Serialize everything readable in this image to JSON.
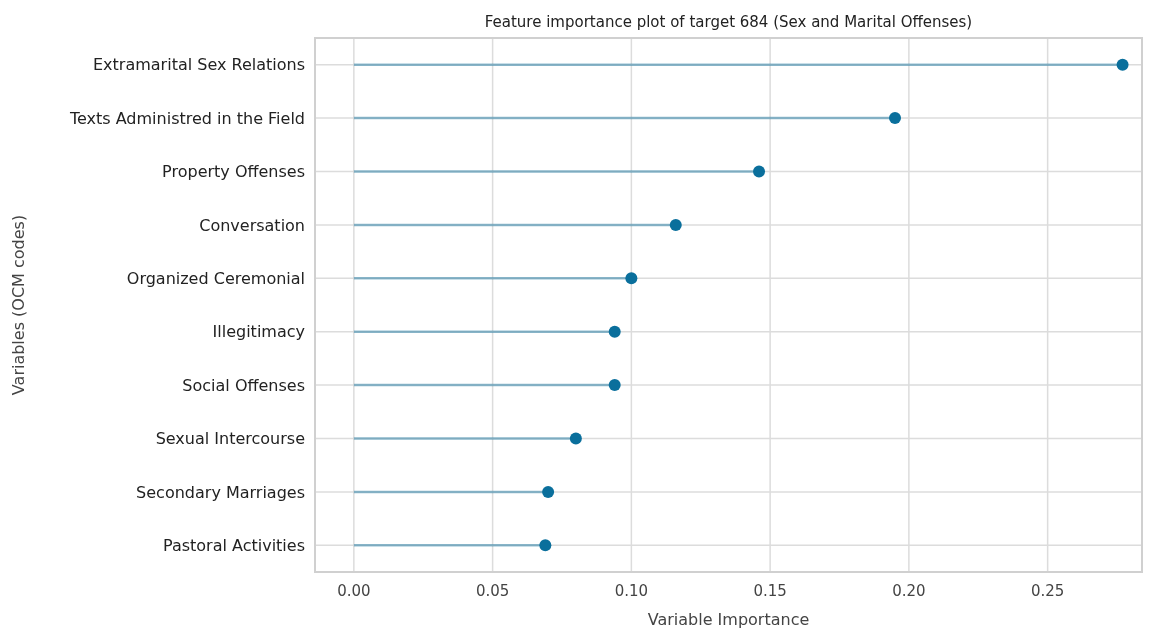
{
  "chart_data": {
    "type": "lollipop",
    "orientation": "horizontal",
    "title": "Feature importance plot of target 684 (Sex and Marital Offenses)",
    "xlabel": "Variable Importance",
    "ylabel": "Variables (OCM codes)",
    "categories": [
      "Extramarital Sex Relations",
      "Texts Administred in the Field",
      "Property Offenses",
      "Conversation",
      "Organized Ceremonial",
      "Illegitimacy",
      "Social Offenses",
      "Sexual Intercourse",
      "Secondary Marriages",
      "Pastoral Activities"
    ],
    "series": [
      {
        "color": "#0a6f9c",
        "values": [
          0.277,
          0.195,
          0.146,
          0.116,
          0.1,
          0.094,
          0.094,
          0.08,
          0.07,
          0.069
        ]
      }
    ],
    "xlim": [
      -0.014,
      0.284
    ],
    "xticks": [
      {
        "value": 0,
        "label": "0.00"
      },
      {
        "value": 0.05,
        "label": "0.05"
      },
      {
        "value": 0.1,
        "label": "0.10"
      },
      {
        "value": 0.15,
        "label": "0.15"
      },
      {
        "value": 0.2,
        "label": "0.20"
      },
      {
        "value": 0.25,
        "label": "0.25"
      }
    ],
    "grid": true,
    "marker": "circle"
  }
}
